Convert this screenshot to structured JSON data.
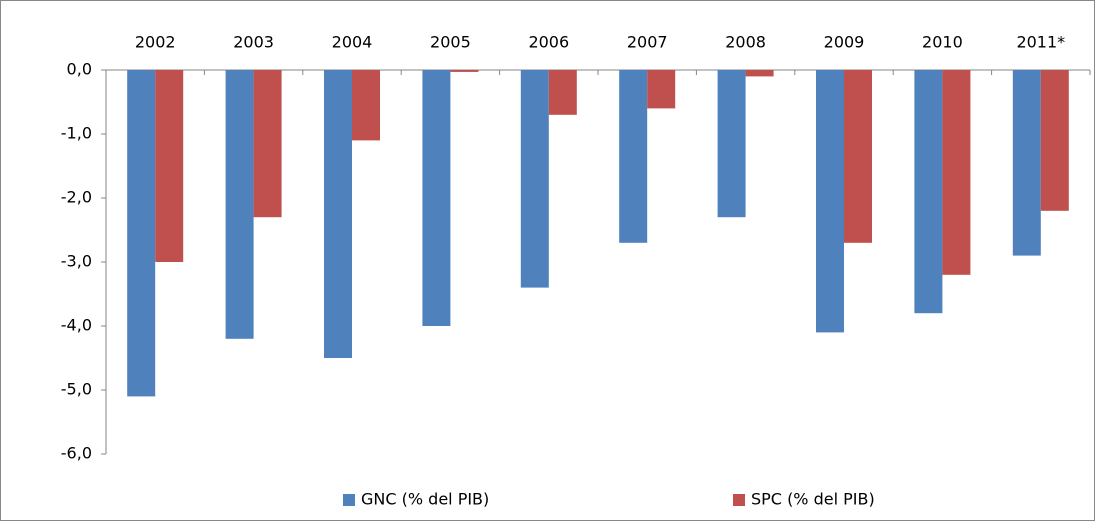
{
  "chart_data": {
    "type": "bar",
    "categories": [
      "2002",
      "2003",
      "2004",
      "2005",
      "2006",
      "2007",
      "2008",
      "2009",
      "2010",
      "2011*"
    ],
    "series": [
      {
        "name": "GNC (% del PIB)",
        "color": "#4f81bd",
        "values": [
          -5.1,
          -4.2,
          -4.5,
          -4.0,
          -3.4,
          -2.7,
          -2.3,
          -4.1,
          -3.8,
          -2.9
        ]
      },
      {
        "name": "SPC (% del PIB)",
        "color": "#c0504d",
        "values": [
          -3.0,
          -2.3,
          -1.1,
          -0.03,
          -0.7,
          -0.6,
          -0.1,
          -2.7,
          -3.2,
          -2.2
        ]
      }
    ],
    "ylim": [
      -6,
      0
    ],
    "yticks": [
      {
        "value": 0,
        "label": "0,0"
      },
      {
        "value": -1,
        "label": "-1,0"
      },
      {
        "value": -2,
        "label": "-2,0"
      },
      {
        "value": -3,
        "label": "-3,0"
      },
      {
        "value": -4,
        "label": "-4,0"
      },
      {
        "value": -5,
        "label": "-5,0"
      },
      {
        "value": -6,
        "label": "-6,0"
      }
    ],
    "grid": false,
    "legend": "bottom"
  }
}
